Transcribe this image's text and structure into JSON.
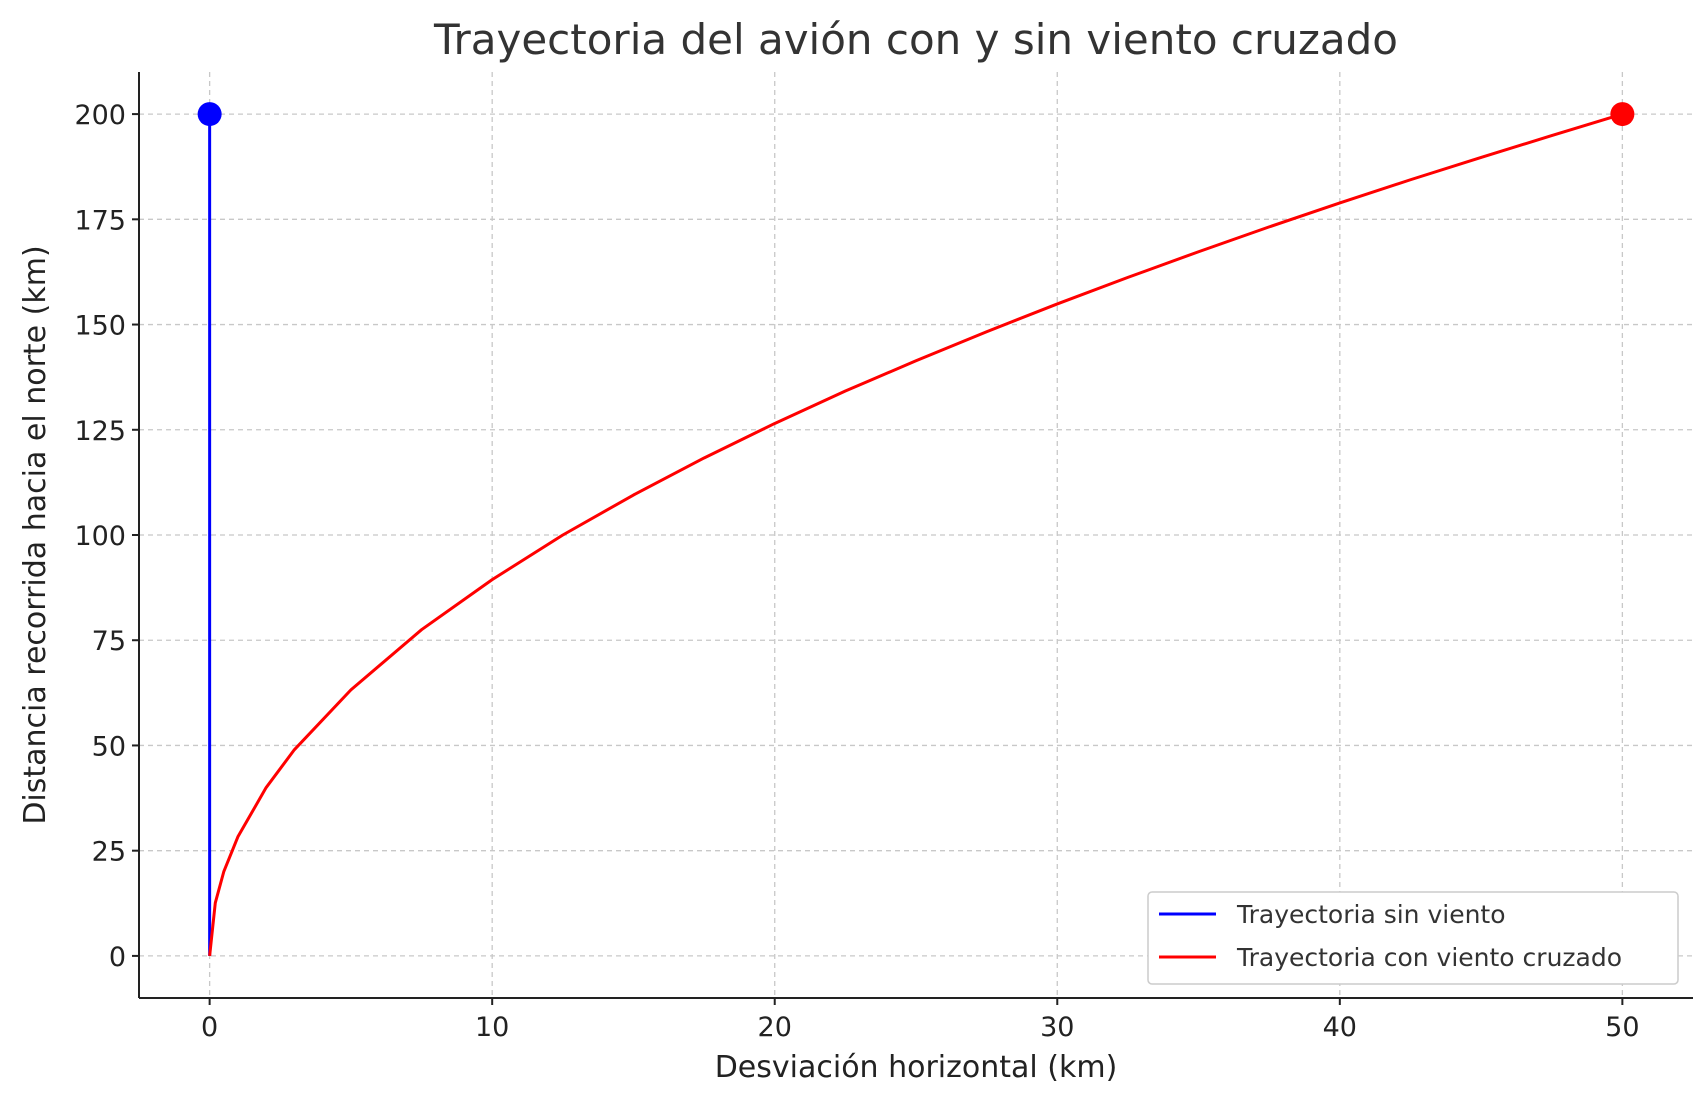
{
  "chart_data": {
    "type": "line",
    "title": "Trayectoria del avión con y sin viento cruzado",
    "xlabel": "Desviación horizontal (km)",
    "ylabel": "Distancia recorrida hacia el norte (km)",
    "xlim": [
      -2.5,
      52.5
    ],
    "ylim": [
      -10,
      210
    ],
    "xticks": [
      0,
      10,
      20,
      30,
      40,
      50
    ],
    "yticks": [
      0,
      25,
      50,
      75,
      100,
      125,
      150,
      175,
      200
    ],
    "grid": true,
    "legend_position": "lower-right",
    "series": [
      {
        "name": "Trayectoria sin viento",
        "color": "#0000ff",
        "x": [
          0,
          0,
          0,
          0,
          0,
          0,
          0,
          0,
          0
        ],
        "y": [
          0,
          25,
          50,
          75,
          100,
          125,
          150,
          175,
          200
        ],
        "end_marker": {
          "x": 0,
          "y": 200
        }
      },
      {
        "name": "Trayectoria con viento cruzado",
        "color": "#ff0000",
        "x": [
          0,
          0.2,
          0.5,
          1,
          2,
          3,
          5,
          7.5,
          10,
          12.5,
          15,
          17.5,
          20,
          22.5,
          25,
          27.5,
          30,
          32.5,
          35,
          37.5,
          40,
          42.5,
          45,
          47.5,
          50
        ],
        "y": [
          0,
          12.6,
          20,
          28.3,
          40,
          49,
          63.2,
          77.5,
          89.4,
          100,
          109.5,
          118.3,
          126.5,
          134.2,
          141.4,
          148.3,
          154.9,
          161.2,
          167.3,
          173.2,
          178.9,
          184.4,
          189.7,
          194.9,
          200
        ],
        "end_marker": {
          "x": 50,
          "y": 200
        }
      }
    ]
  }
}
